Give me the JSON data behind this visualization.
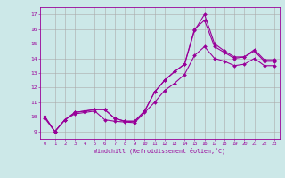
{
  "xlabel": "Windchill (Refroidissement éolien,°C)",
  "bg_color": "#cce8e8",
  "line_color": "#990099",
  "grid_color": "#aaaaaa",
  "xlim": [
    -0.5,
    23.5
  ],
  "ylim": [
    8.5,
    17.5
  ],
  "xticks": [
    0,
    1,
    2,
    3,
    4,
    5,
    6,
    7,
    8,
    9,
    10,
    11,
    12,
    13,
    14,
    15,
    16,
    17,
    18,
    19,
    20,
    21,
    22,
    23
  ],
  "yticks": [
    9,
    10,
    11,
    12,
    13,
    14,
    15,
    16,
    17
  ],
  "line1_x": [
    0,
    1,
    2,
    3,
    4,
    5,
    6,
    7,
    8,
    9,
    10,
    11,
    12,
    13,
    14,
    15,
    16,
    17,
    18,
    19,
    20,
    21,
    22,
    23
  ],
  "line1_y": [
    10.0,
    9.0,
    9.8,
    10.3,
    10.4,
    10.5,
    10.5,
    9.9,
    9.7,
    9.7,
    10.4,
    11.7,
    12.5,
    13.1,
    13.6,
    15.9,
    17.0,
    15.0,
    14.5,
    14.1,
    14.1,
    14.6,
    13.9,
    13.9
  ],
  "line2_x": [
    0,
    1,
    2,
    3,
    4,
    5,
    6,
    7,
    8,
    9,
    10,
    11,
    12,
    13,
    14,
    15,
    16,
    17,
    18,
    19,
    20,
    21,
    22,
    23
  ],
  "line2_y": [
    10.0,
    9.0,
    9.8,
    10.3,
    10.4,
    10.5,
    10.5,
    9.9,
    9.7,
    9.7,
    10.4,
    11.7,
    12.5,
    13.1,
    13.6,
    16.0,
    16.6,
    14.8,
    14.4,
    14.0,
    14.1,
    14.5,
    13.8,
    13.8
  ],
  "line3_x": [
    0,
    1,
    2,
    3,
    4,
    5,
    6,
    7,
    8,
    9,
    10,
    11,
    12,
    13,
    14,
    15,
    16,
    17,
    18,
    19,
    20,
    21,
    22,
    23
  ],
  "line3_y": [
    9.9,
    9.0,
    9.8,
    10.2,
    10.3,
    10.4,
    9.8,
    9.7,
    9.65,
    9.6,
    10.3,
    11.0,
    11.8,
    12.3,
    12.9,
    14.2,
    14.8,
    14.0,
    13.8,
    13.5,
    13.6,
    14.0,
    13.5,
    13.5
  ]
}
